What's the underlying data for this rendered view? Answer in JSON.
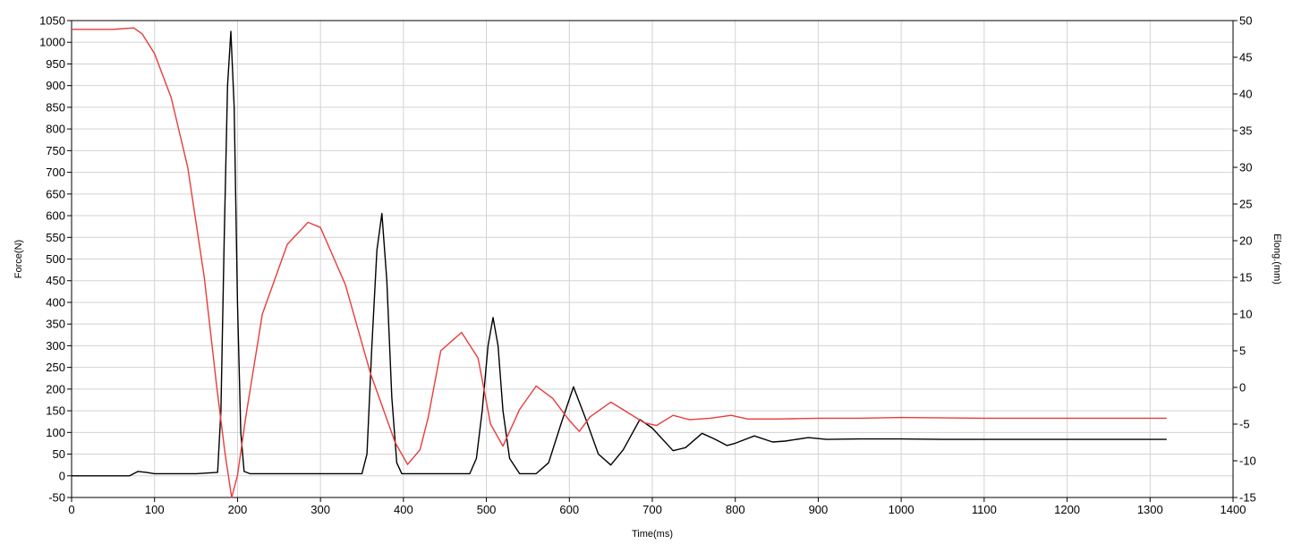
{
  "chart_data": {
    "type": "line",
    "xlabel": "Time(ms)",
    "ylabel": "Force(N)",
    "ylabel_right": "Elong.(mm)",
    "xlim": [
      0,
      1400
    ],
    "ylim": [
      -50,
      1050
    ],
    "ylim_right": [
      -15,
      50
    ],
    "x_ticks": [
      0,
      100,
      200,
      300,
      400,
      500,
      600,
      700,
      800,
      900,
      1000,
      1100,
      1200,
      1300,
      1400
    ],
    "y_ticks": [
      -50,
      0,
      50,
      100,
      150,
      200,
      250,
      300,
      350,
      400,
      450,
      500,
      550,
      600,
      650,
      700,
      750,
      800,
      850,
      900,
      950,
      1000,
      1050
    ],
    "y_ticks_right": [
      -15,
      -10,
      -5,
      0,
      5,
      10,
      15,
      20,
      25,
      30,
      35,
      40,
      45,
      50
    ],
    "grid": true,
    "legend": "none",
    "series": [
      {
        "axis": "left",
        "color": "#000000",
        "x": [
          0,
          70,
          80,
          90,
          100,
          150,
          176,
          180,
          184,
          188,
          192,
          196,
          200,
          204,
          208,
          215,
          250,
          300,
          350,
          356,
          362,
          368,
          374,
          380,
          386,
          392,
          398,
          420,
          480,
          488,
          495,
          502,
          508,
          514,
          520,
          528,
          540,
          560,
          575,
          590,
          605,
          620,
          635,
          650,
          665,
          685,
          700,
          725,
          740,
          760,
          775,
          790,
          800,
          823,
          845,
          860,
          888,
          910,
          950,
          1000,
          1050,
          1100,
          1150,
          1200,
          1250,
          1320
        ],
        "values": [
          0,
          0,
          10,
          8,
          5,
          5,
          8,
          150,
          550,
          900,
          1025,
          850,
          400,
          100,
          10,
          5,
          5,
          5,
          5,
          50,
          300,
          520,
          605,
          450,
          180,
          30,
          5,
          5,
          5,
          40,
          150,
          300,
          365,
          300,
          150,
          40,
          5,
          5,
          30,
          120,
          205,
          130,
          50,
          25,
          60,
          130,
          110,
          58,
          65,
          98,
          85,
          70,
          75,
          92,
          78,
          80,
          88,
          84,
          85,
          85,
          84,
          84,
          84,
          84,
          84,
          84
        ]
      },
      {
        "axis": "right",
        "color": "#e83c3c",
        "x": [
          0,
          50,
          75,
          85,
          100,
          120,
          140,
          160,
          175,
          185,
          193,
          200,
          210,
          230,
          260,
          285,
          300,
          330,
          360,
          390,
          405,
          420,
          430,
          445,
          470,
          490,
          505,
          520,
          540,
          560,
          580,
          600,
          612,
          625,
          650,
          670,
          690,
          705,
          725,
          745,
          770,
          795,
          815,
          850,
          900,
          950,
          1000,
          1100,
          1200,
          1320
        ],
        "values": [
          48.8,
          48.8,
          49,
          48.2,
          45.5,
          39.5,
          30,
          15,
          0,
          -9,
          -15,
          -12,
          -4,
          10,
          19.5,
          22.5,
          21.8,
          14,
          2,
          -7.5,
          -10.5,
          -8.5,
          -4,
          5,
          7.5,
          4,
          -5,
          -8,
          -3,
          0.2,
          -1.5,
          -4.5,
          -6,
          -4,
          -2,
          -3.4,
          -4.8,
          -5.2,
          -3.8,
          -4.4,
          -4.2,
          -3.8,
          -4.3,
          -4.3,
          -4.2,
          -4.2,
          -4.1,
          -4.2,
          -4.2,
          -4.2
        ]
      }
    ]
  }
}
